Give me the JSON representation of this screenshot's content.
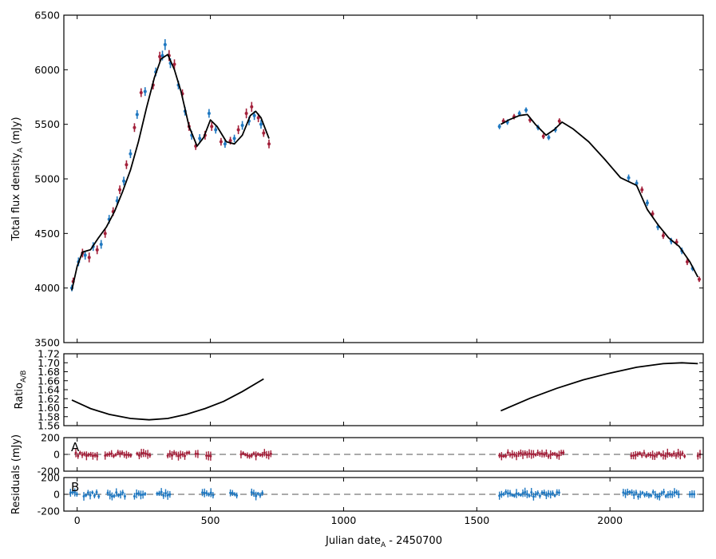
{
  "chart_data": [
    {
      "panel": "main",
      "type": "scatter",
      "ylabel": "Total flux density",
      "ylabel_sub": "A",
      "ylabel_unit": " (mJy)",
      "xlim": [
        -50,
        2350
      ],
      "ylim": [
        3500,
        6500
      ],
      "yticks": [
        3500,
        4000,
        4500,
        5000,
        5500,
        6000,
        6500
      ],
      "grid": false,
      "colors": {
        "seriesA": "#a3203a",
        "seriesB": "#1f78c1",
        "model": "#000000"
      },
      "model_curve": {
        "segment1": [
          [
            -20,
            3980
          ],
          [
            0,
            4200
          ],
          [
            20,
            4330
          ],
          [
            50,
            4350
          ],
          [
            80,
            4460
          ],
          [
            110,
            4560
          ],
          [
            140,
            4700
          ],
          [
            170,
            4880
          ],
          [
            200,
            5080
          ],
          [
            230,
            5340
          ],
          [
            260,
            5650
          ],
          [
            290,
            5930
          ],
          [
            315,
            6100
          ],
          [
            340,
            6140
          ],
          [
            365,
            6000
          ],
          [
            390,
            5800
          ],
          [
            420,
            5480
          ],
          [
            450,
            5300
          ],
          [
            475,
            5380
          ],
          [
            500,
            5540
          ],
          [
            525,
            5480
          ],
          [
            560,
            5340
          ],
          [
            590,
            5320
          ],
          [
            620,
            5400
          ],
          [
            650,
            5580
          ],
          [
            670,
            5620
          ],
          [
            690,
            5560
          ],
          [
            720,
            5370
          ]
        ],
        "segment2": [
          [
            1590,
            5500
          ],
          [
            1620,
            5540
          ],
          [
            1660,
            5580
          ],
          [
            1690,
            5590
          ],
          [
            1720,
            5500
          ],
          [
            1760,
            5400
          ],
          [
            1790,
            5450
          ],
          [
            1820,
            5520
          ],
          [
            1860,
            5460
          ],
          [
            1920,
            5340
          ],
          [
            1980,
            5180
          ],
          [
            2040,
            5010
          ],
          [
            2100,
            4940
          ],
          [
            2140,
            4720
          ],
          [
            2180,
            4580
          ],
          [
            2220,
            4460
          ],
          [
            2260,
            4380
          ],
          [
            2300,
            4240
          ],
          [
            2330,
            4100
          ]
        ]
      },
      "seriesA": [
        [
          -15,
          4060,
          35
        ],
        [
          20,
          4320,
          40
        ],
        [
          45,
          4280,
          45
        ],
        [
          75,
          4350,
          40
        ],
        [
          105,
          4500,
          40
        ],
        [
          135,
          4700,
          40
        ],
        [
          160,
          4900,
          40
        ],
        [
          185,
          5130,
          40
        ],
        [
          215,
          5470,
          40
        ],
        [
          240,
          5790,
          40
        ],
        [
          285,
          5860,
          40
        ],
        [
          310,
          6120,
          45
        ],
        [
          345,
          6130,
          50
        ],
        [
          365,
          6050,
          45
        ],
        [
          395,
          5780,
          40
        ],
        [
          420,
          5480,
          40
        ],
        [
          445,
          5300,
          35
        ],
        [
          480,
          5400,
          40
        ],
        [
          505,
          5480,
          40
        ],
        [
          540,
          5340,
          35
        ],
        [
          575,
          5350,
          35
        ],
        [
          605,
          5450,
          40
        ],
        [
          635,
          5600,
          45
        ],
        [
          655,
          5660,
          45
        ],
        [
          680,
          5560,
          40
        ],
        [
          700,
          5420,
          35
        ],
        [
          720,
          5320,
          40
        ],
        [
          1600,
          5530,
          25
        ],
        [
          1640,
          5570,
          25
        ],
        [
          1700,
          5540,
          25
        ],
        [
          1750,
          5390,
          25
        ],
        [
          1810,
          5530,
          25
        ],
        [
          2120,
          4900,
          30
        ],
        [
          2160,
          4680,
          30
        ],
        [
          2200,
          4480,
          30
        ],
        [
          2250,
          4420,
          30
        ],
        [
          2290,
          4240,
          30
        ],
        [
          2335,
          4080,
          25
        ]
      ],
      "seriesB": [
        [
          -20,
          4000,
          30
        ],
        [
          5,
          4240,
          40
        ],
        [
          30,
          4300,
          40
        ],
        [
          60,
          4380,
          40
        ],
        [
          90,
          4400,
          40
        ],
        [
          120,
          4630,
          40
        ],
        [
          150,
          4800,
          40
        ],
        [
          175,
          4980,
          40
        ],
        [
          200,
          5230,
          40
        ],
        [
          225,
          5590,
          40
        ],
        [
          255,
          5800,
          40
        ],
        [
          295,
          5980,
          40
        ],
        [
          320,
          6130,
          45
        ],
        [
          330,
          6230,
          50
        ],
        [
          350,
          6060,
          45
        ],
        [
          380,
          5860,
          40
        ],
        [
          405,
          5620,
          40
        ],
        [
          430,
          5400,
          40
        ],
        [
          460,
          5370,
          40
        ],
        [
          495,
          5600,
          40
        ],
        [
          520,
          5450,
          35
        ],
        [
          555,
          5320,
          35
        ],
        [
          590,
          5370,
          35
        ],
        [
          620,
          5490,
          40
        ],
        [
          645,
          5530,
          40
        ],
        [
          665,
          5580,
          40
        ],
        [
          690,
          5500,
          40
        ],
        [
          1585,
          5480,
          25
        ],
        [
          1615,
          5520,
          25
        ],
        [
          1660,
          5600,
          25
        ],
        [
          1685,
          5630,
          25
        ],
        [
          1730,
          5470,
          25
        ],
        [
          1770,
          5380,
          25
        ],
        [
          1795,
          5450,
          25
        ],
        [
          2070,
          5010,
          30
        ],
        [
          2100,
          4960,
          30
        ],
        [
          2140,
          4780,
          30
        ],
        [
          2180,
          4560,
          30
        ],
        [
          2230,
          4430,
          30
        ],
        [
          2270,
          4340,
          30
        ],
        [
          2310,
          4180,
          25
        ]
      ]
    },
    {
      "panel": "ratio",
      "type": "line",
      "ylabel": "Ratio",
      "ylabel_sub": "A/B",
      "xlim": [
        -50,
        2350
      ],
      "ylim": [
        1.56,
        1.72
      ],
      "yticks": [
        1.56,
        1.58,
        1.6,
        1.62,
        1.64,
        1.66,
        1.68,
        1.7,
        1.72
      ],
      "segments": [
        [
          [
            -20,
            1.617
          ],
          [
            50,
            1.598
          ],
          [
            120,
            1.585
          ],
          [
            200,
            1.576
          ],
          [
            270,
            1.573
          ],
          [
            340,
            1.576
          ],
          [
            410,
            1.585
          ],
          [
            480,
            1.598
          ],
          [
            550,
            1.614
          ],
          [
            620,
            1.636
          ],
          [
            700,
            1.664
          ]
        ],
        [
          [
            1590,
            1.593
          ],
          [
            1700,
            1.621
          ],
          [
            1800,
            1.643
          ],
          [
            1900,
            1.662
          ],
          [
            2000,
            1.677
          ],
          [
            2100,
            1.69
          ],
          [
            2200,
            1.698
          ],
          [
            2270,
            1.7
          ],
          [
            2330,
            1.698
          ]
        ]
      ]
    },
    {
      "panel": "residuals_A",
      "type": "scatter",
      "letter": "A",
      "xlim": [
        -50,
        2350
      ],
      "ylim": [
        -200,
        200
      ],
      "yticks": [
        -200,
        0,
        200
      ],
      "ranges": [
        [
          -5,
          80
        ],
        [
          105,
          205
        ],
        [
          225,
          280
        ],
        [
          340,
          425
        ],
        [
          445,
          455
        ],
        [
          485,
          505
        ],
        [
          615,
          730
        ],
        [
          1585,
          1825
        ],
        [
          2080,
          2280
        ],
        [
          2330,
          2340
        ]
      ],
      "amplitude": 45
    },
    {
      "panel": "residuals_B",
      "type": "scatter",
      "letter": "B",
      "xlim": [
        -50,
        2350
      ],
      "ylim": [
        -200,
        200
      ],
      "yticks": [
        -200,
        0,
        200
      ],
      "ranges": [
        [
          -25,
          5
        ],
        [
          25,
          85
        ],
        [
          115,
          180
        ],
        [
          215,
          255
        ],
        [
          300,
          355
        ],
        [
          470,
          515
        ],
        [
          575,
          605
        ],
        [
          655,
          700
        ],
        [
          1585,
          1810
        ],
        [
          2050,
          2265
        ],
        [
          2300,
          2320
        ]
      ],
      "amplitude": 55
    }
  ],
  "shared_axis": {
    "xlabel": "Julian date",
    "xlabel_sub": "A",
    "xlabel_suffix": " - 2450700",
    "xticks": [
      0,
      500,
      1000,
      1500,
      2000
    ]
  },
  "residuals_ylabel": "Residuals (mJy)"
}
